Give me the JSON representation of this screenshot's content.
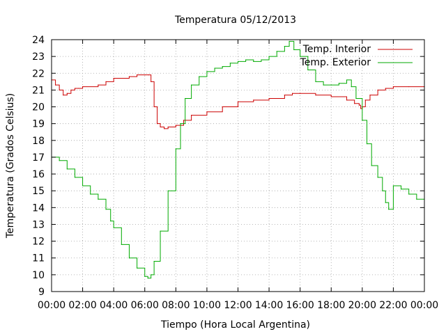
{
  "chart_data": {
    "type": "line",
    "title": "Temperatura 05/12/2013",
    "xlabel": "Tiempo (Hora Local Argentina)",
    "ylabel": "Temperatura (Grados Celsius)",
    "xlim": [
      0,
      24
    ],
    "ylim": [
      9,
      24
    ],
    "x_ticks": [
      "00:00",
      "02:00",
      "04:00",
      "06:00",
      "08:00",
      "10:00",
      "12:00",
      "14:00",
      "16:00",
      "18:00",
      "20:00",
      "22:00",
      "00:00"
    ],
    "y_ticks": [
      9,
      10,
      11,
      12,
      13,
      14,
      15,
      16,
      17,
      18,
      19,
      20,
      21,
      22,
      23,
      24
    ],
    "grid": true,
    "legend_position": "top-right",
    "series": [
      {
        "name": "Temp. Interior",
        "color": "#cc0000",
        "x": [
          0,
          0.25,
          0.5,
          0.75,
          1.0,
          1.25,
          1.5,
          1.75,
          2.0,
          3.0,
          3.5,
          4.0,
          5.0,
          5.5,
          6.0,
          6.25,
          6.4,
          6.6,
          6.8,
          7.0,
          7.25,
          7.5,
          8.0,
          8.5,
          9.0,
          10.0,
          11.0,
          12.0,
          13.0,
          14.0,
          15.0,
          15.5,
          16.0,
          17.0,
          18.0,
          19.0,
          19.5,
          19.8,
          19.9,
          20.0,
          20.2,
          20.5,
          21.0,
          21.5,
          22.0,
          23.0,
          24.0
        ],
        "values": [
          21.6,
          21.3,
          21.0,
          20.7,
          20.8,
          21.0,
          21.1,
          21.1,
          21.2,
          21.3,
          21.5,
          21.7,
          21.8,
          21.9,
          21.9,
          21.9,
          21.5,
          20.0,
          19.0,
          18.8,
          18.7,
          18.8,
          18.9,
          19.2,
          19.5,
          19.7,
          20.0,
          20.3,
          20.4,
          20.5,
          20.7,
          20.8,
          20.8,
          20.7,
          20.6,
          20.4,
          20.2,
          20.1,
          19.9,
          20.0,
          20.4,
          20.7,
          21.0,
          21.1,
          21.2,
          21.2,
          21.2
        ]
      },
      {
        "name": "Temp. Exterior",
        "color": "#00aa00",
        "x": [
          0,
          0.5,
          1.0,
          1.5,
          2.0,
          2.5,
          3.0,
          3.5,
          3.8,
          4.0,
          4.5,
          5.0,
          5.5,
          6.0,
          6.2,
          6.4,
          6.6,
          7.0,
          7.5,
          8.0,
          8.3,
          8.6,
          9.0,
          9.5,
          10.0,
          10.5,
          11.0,
          11.5,
          12.0,
          12.5,
          13.0,
          13.5,
          14.0,
          14.5,
          15.0,
          15.3,
          15.6,
          16.0,
          16.5,
          17.0,
          17.5,
          18.0,
          18.5,
          19.0,
          19.3,
          19.6,
          20.0,
          20.3,
          20.6,
          21.0,
          21.3,
          21.5,
          21.7,
          22.0,
          22.5,
          23.0,
          23.5,
          24.0
        ],
        "values": [
          17.0,
          16.8,
          16.3,
          15.8,
          15.3,
          14.8,
          14.5,
          13.9,
          13.2,
          12.8,
          11.8,
          11.0,
          10.4,
          9.9,
          9.8,
          10.0,
          10.8,
          12.6,
          15.0,
          17.5,
          19.0,
          20.5,
          21.3,
          21.8,
          22.1,
          22.3,
          22.4,
          22.6,
          22.7,
          22.8,
          22.7,
          22.8,
          23.0,
          23.3,
          23.6,
          23.9,
          23.4,
          23.0,
          22.2,
          21.5,
          21.3,
          21.3,
          21.4,
          21.6,
          21.2,
          20.5,
          19.2,
          17.8,
          16.5,
          15.8,
          15.0,
          14.3,
          13.9,
          15.3,
          15.1,
          14.8,
          14.5,
          14.0
        ]
      }
    ]
  }
}
